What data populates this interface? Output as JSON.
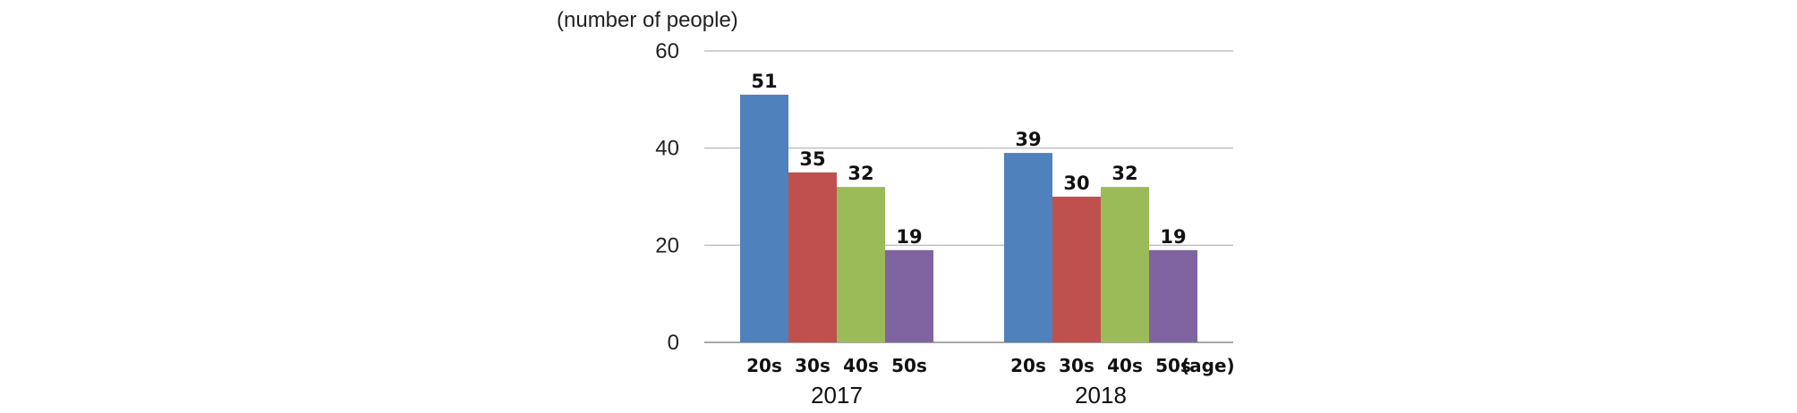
{
  "chart_data": {
    "type": "bar",
    "ylabel": "(number of people)",
    "x_unit_label": "(age)",
    "ylim": [
      0,
      60
    ],
    "yticks": [
      0,
      20,
      40,
      60
    ],
    "grid": true,
    "legend": "none",
    "groups": [
      {
        "label": "2017",
        "bars": [
          {
            "category": "20s",
            "value": 51,
            "color": "#4f81bd"
          },
          {
            "category": "30s",
            "value": 35,
            "color": "#c0504d"
          },
          {
            "category": "40s",
            "value": 32,
            "color": "#9bbb59"
          },
          {
            "category": "50s",
            "value": 19,
            "color": "#8064a2"
          }
        ]
      },
      {
        "label": "2018",
        "bars": [
          {
            "category": "20s",
            "value": 39,
            "color": "#4f81bd"
          },
          {
            "category": "30s",
            "value": 30,
            "color": "#c0504d"
          },
          {
            "category": "40s",
            "value": 32,
            "color": "#9bbb59"
          },
          {
            "category": "50s",
            "value": 19,
            "color": "#8064a2"
          }
        ]
      }
    ]
  }
}
